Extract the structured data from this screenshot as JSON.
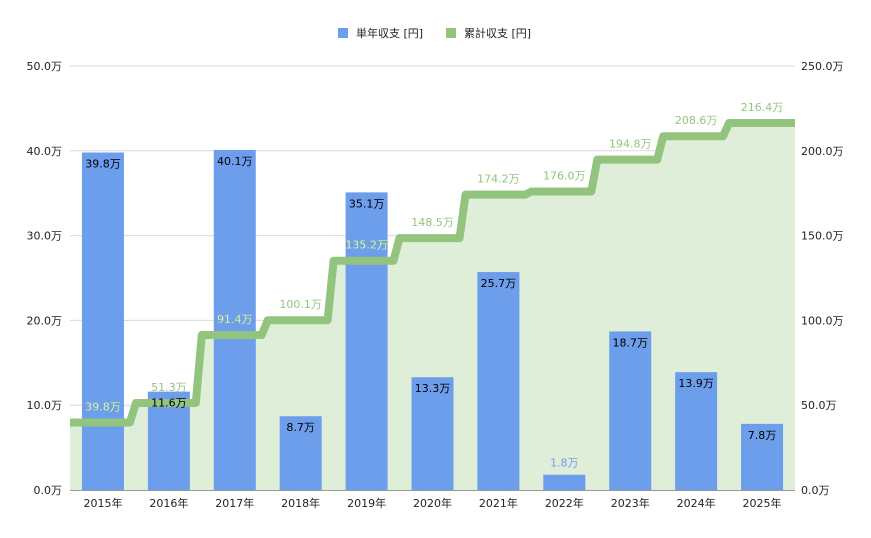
{
  "chart_data": {
    "type": "bar+stepped-area",
    "categories": [
      "2015年",
      "2016年",
      "2017年",
      "2018年",
      "2019年",
      "2020年",
      "2021年",
      "2022年",
      "2023年",
      "2024年",
      "2025年"
    ],
    "series": [
      {
        "name": "単年収支 [円]",
        "axis": "left",
        "color": "#6d9eeb",
        "values": [
          39.8,
          11.6,
          40.1,
          8.7,
          35.1,
          13.3,
          25.7,
          1.8,
          18.7,
          13.9,
          7.8
        ],
        "labels": [
          "39.8万",
          "11.6万",
          "40.1万",
          "8.7万",
          "35.1万",
          "13.3万",
          "25.7万",
          "1.8万",
          "18.7万",
          "13.9万",
          "7.8万"
        ]
      },
      {
        "name": "累計収支 [円]",
        "axis": "right",
        "color": "#93c47d",
        "fill": "#dfeed8",
        "values": [
          39.8,
          51.3,
          91.4,
          100.1,
          135.2,
          148.5,
          174.2,
          176.0,
          194.8,
          208.6,
          216.4
        ],
        "labels": [
          "39.8万",
          "51.3万",
          "91.4万",
          "100.1万",
          "135.2万",
          "148.5万",
          "174.2万",
          "176.0万",
          "194.8万",
          "208.6万",
          "216.4万"
        ]
      }
    ],
    "y_left": {
      "range": [
        0,
        50
      ],
      "ticks": [
        "0.0万",
        "10.0万",
        "20.0万",
        "30.0万",
        "40.0万",
        "50.0万"
      ]
    },
    "y_right": {
      "range": [
        0,
        250
      ],
      "ticks": [
        "0.0万",
        "50.0万",
        "100.0万",
        "150.0万",
        "200.0万",
        "250.0万"
      ]
    },
    "legend_position": "top",
    "grid": true
  }
}
